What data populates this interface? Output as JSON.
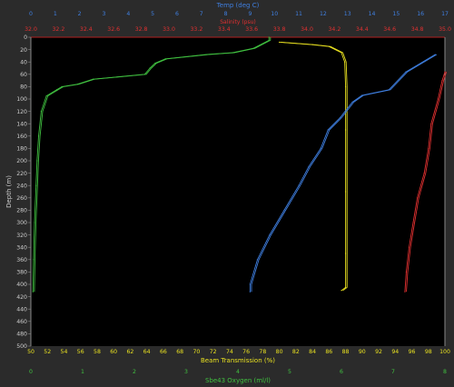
{
  "chart_data": {
    "type": "line",
    "ylabel": "Depth (m)",
    "ylim": [
      500,
      0
    ],
    "yticks": [
      0,
      20,
      40,
      60,
      80,
      100,
      120,
      140,
      160,
      180,
      200,
      220,
      240,
      260,
      280,
      300,
      320,
      340,
      360,
      380,
      400,
      420,
      440,
      460,
      480,
      500
    ],
    "grid": false,
    "axes": {
      "temp": {
        "label": "Temp (deg C)",
        "range": [
          0,
          17
        ],
        "ticks": [
          "0",
          "1",
          "2",
          "3",
          "4",
          "5",
          "6",
          "7",
          "8",
          "9",
          "10",
          "11",
          "12",
          "13",
          "14",
          "15",
          "16",
          "17"
        ],
        "color": "#3f7fe0",
        "position": "top-1"
      },
      "salinity": {
        "label": "Salinity (psu)",
        "range": [
          32.0,
          35.0
        ],
        "ticks": [
          "32.0",
          "32.2",
          "32.4",
          "32.6",
          "32.8",
          "33.0",
          "33.2",
          "33.4",
          "33.6",
          "33.8",
          "34.0",
          "34.2",
          "34.4",
          "34.6",
          "34.8",
          "35.0"
        ],
        "color": "#e03030",
        "position": "top-2"
      },
      "beam": {
        "label": "Beam Transmission (%)",
        "range": [
          50,
          100
        ],
        "ticks": [
          "50",
          "52",
          "54",
          "56",
          "58",
          "60",
          "62",
          "64",
          "66",
          "68",
          "70",
          "72",
          "74",
          "76",
          "78",
          "80",
          "82",
          "84",
          "86",
          "88",
          "90",
          "92",
          "94",
          "96",
          "98",
          "100"
        ],
        "color": "#e8e020",
        "position": "bottom-1"
      },
      "oxygen": {
        "label": "Sbe43 Oxygen (ml/l)",
        "range": [
          0,
          8
        ],
        "ticks": [
          "0",
          "1",
          "2",
          "3",
          "4",
          "5",
          "6",
          "7",
          "8"
        ],
        "color": "#40c040",
        "position": "bottom-2"
      }
    },
    "series": [
      {
        "axis": "oxygen",
        "color": "#40c040",
        "points": [
          [
            4.6,
            0
          ],
          [
            4.6,
            5
          ],
          [
            4.3,
            18
          ],
          [
            3.9,
            25
          ],
          [
            3.4,
            28
          ],
          [
            2.6,
            35
          ],
          [
            2.4,
            42
          ],
          [
            2.3,
            50
          ],
          [
            2.2,
            60
          ],
          [
            1.2,
            68
          ],
          [
            0.9,
            76
          ],
          [
            0.6,
            80
          ],
          [
            0.5,
            85
          ],
          [
            0.3,
            95
          ],
          [
            0.2,
            120
          ],
          [
            0.15,
            160
          ],
          [
            0.12,
            200
          ],
          [
            0.1,
            240
          ],
          [
            0.07,
            300
          ],
          [
            0.05,
            360
          ],
          [
            0.04,
            412
          ]
        ]
      },
      {
        "axis": "beam",
        "color": "#e8e020",
        "points": [
          [
            80,
            8
          ],
          [
            84,
            12
          ],
          [
            86,
            15
          ],
          [
            87.5,
            25
          ],
          [
            87.9,
            40
          ],
          [
            88,
            80
          ],
          [
            88,
            150
          ],
          [
            88,
            250
          ],
          [
            88,
            350
          ],
          [
            88,
            405
          ],
          [
            87.5,
            410
          ]
        ]
      },
      {
        "axis": "temp",
        "color": "#3f7fe0",
        "points": [
          [
            16.6,
            28
          ],
          [
            15.4,
            56
          ],
          [
            14.7,
            85
          ],
          [
            13.6,
            94
          ],
          [
            13.2,
            105
          ],
          [
            12.7,
            130
          ],
          [
            12.2,
            150
          ],
          [
            11.9,
            180
          ],
          [
            11.4,
            210
          ],
          [
            11.0,
            240
          ],
          [
            10.4,
            280
          ],
          [
            9.8,
            320
          ],
          [
            9.3,
            360
          ],
          [
            9.0,
            400
          ],
          [
            9.0,
            412
          ]
        ]
      },
      {
        "axis": "salinity",
        "color": "#e03030",
        "points": [
          [
            35.0,
            56
          ],
          [
            34.98,
            70
          ],
          [
            34.95,
            100
          ],
          [
            34.9,
            140
          ],
          [
            34.88,
            180
          ],
          [
            34.85,
            220
          ],
          [
            34.8,
            260
          ],
          [
            34.77,
            300
          ],
          [
            34.74,
            340
          ],
          [
            34.72,
            380
          ],
          [
            34.71,
            412
          ]
        ]
      }
    ]
  }
}
